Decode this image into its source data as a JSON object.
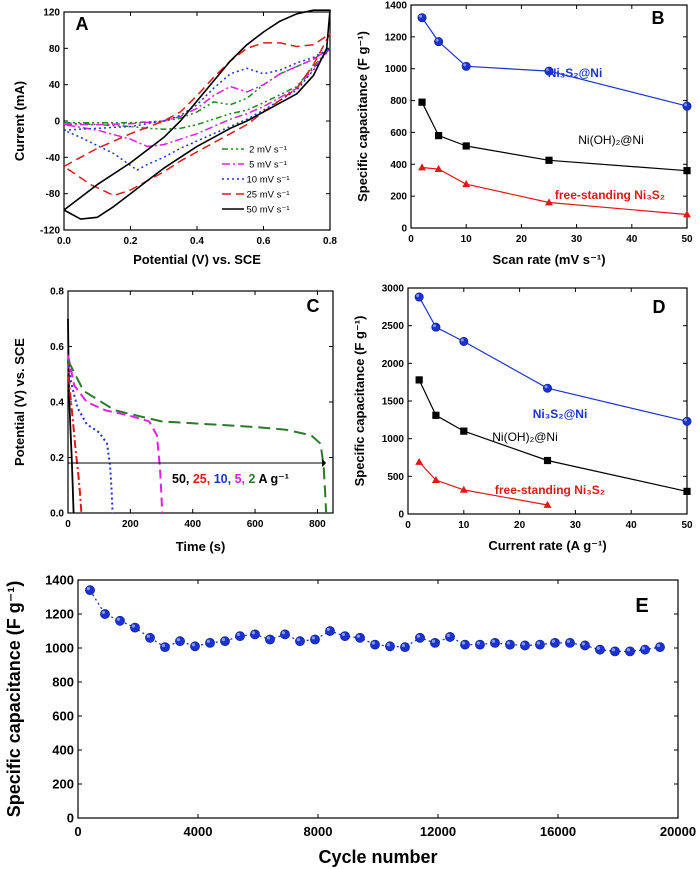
{
  "panels": {
    "A": {
      "letter": "A",
      "xlabel": "Potential (V) vs. SCE",
      "ylabel": "Current (mA)",
      "xlim": [
        0.0,
        0.8
      ],
      "ylim": [
        -120,
        120
      ],
      "xticks": [
        "0.0",
        "0.2",
        "0.4",
        "0.6",
        "0.8"
      ],
      "yticks": [
        "-120",
        "-80",
        "-40",
        "0",
        "40",
        "80",
        "120"
      ],
      "legend": [
        "2 mV s⁻¹",
        "5 mV s⁻¹",
        "10 mV s⁻¹",
        "25 mV s⁻¹",
        "50 mV s⁻¹"
      ]
    },
    "B": {
      "letter": "B",
      "xlabel": "Scan rate (mV s⁻¹)",
      "ylabel": "Specific capacitance (F g⁻¹)",
      "xticks": [
        "0",
        "10",
        "20",
        "30",
        "40",
        "50"
      ],
      "yticks": [
        "0",
        "200",
        "400",
        "600",
        "800",
        "1000",
        "1200",
        "1400"
      ],
      "labels": [
        "Ni₃S₂@Ni",
        "Ni(OH)₂@Ni",
        "free-standing Ni₃S₂"
      ]
    },
    "C": {
      "letter": "C",
      "xlabel": "Time (s)",
      "ylabel": "Potential (V) vs. SCE",
      "xticks": [
        "0",
        "200",
        "400",
        "600",
        "800"
      ],
      "yticks": [
        "0.0",
        "0.2",
        "0.4",
        "0.6",
        "0.8"
      ],
      "rates_label": [
        "50",
        "25",
        "10",
        "5",
        "2"
      ],
      "rates_unit": "A g⁻¹"
    },
    "D": {
      "letter": "D",
      "xlabel": "Current rate (A g⁻¹)",
      "ylabel": "Specific capacitance (F g⁻¹)",
      "xticks": [
        "0",
        "10",
        "20",
        "30",
        "40",
        "50"
      ],
      "yticks": [
        "0",
        "500",
        "1000",
        "1500",
        "2000",
        "2500",
        "3000"
      ],
      "labels": [
        "Ni₃S₂@Ni",
        "Ni(OH)₂@Ni",
        "free-standing Ni₃S₂"
      ]
    },
    "E": {
      "letter": "E",
      "xlabel": "Cycle number",
      "ylabel": "Specific capacitance (F g⁻¹)",
      "xticks": [
        "0",
        "4000",
        "8000",
        "12000",
        "16000",
        "20000"
      ],
      "yticks": [
        "0",
        "200",
        "400",
        "600",
        "800",
        "1000",
        "1200",
        "1400"
      ]
    }
  },
  "colors": {
    "black": "#000000",
    "blue": "#1a33d0",
    "red": "#e01818",
    "green": "#1a8a1a",
    "magenta": "#e020e0",
    "darkgreen": "#2a7a2a"
  },
  "chart_data": [
    {
      "panel": "A",
      "type": "line",
      "xlim": [
        0.0,
        0.8
      ],
      "ylim": [
        -120,
        120
      ],
      "series": [
        {
          "name": "2 mV s⁻¹",
          "color": "#1a8a1a",
          "dash": "dashdotdot",
          "x": [
            0.0,
            0.1,
            0.2,
            0.3,
            0.35,
            0.4,
            0.45,
            0.5,
            0.55,
            0.6,
            0.65,
            0.7,
            0.75,
            0.8,
            0.75,
            0.7,
            0.6,
            0.55,
            0.5,
            0.45,
            0.4,
            0.35,
            0.3,
            0.25,
            0.2,
            0.1,
            0.0
          ],
          "y": [
            -2,
            -2,
            -2,
            0,
            3,
            10,
            21,
            18,
            25,
            40,
            52,
            60,
            68,
            80,
            60,
            38,
            20,
            12,
            8,
            2,
            -4,
            -8,
            -9,
            -8,
            -6,
            -4,
            -2
          ]
        },
        {
          "name": "5 mV s⁻¹",
          "color": "#e020e0",
          "dash": "dashdot",
          "x": [
            0.0,
            0.1,
            0.2,
            0.3,
            0.35,
            0.4,
            0.45,
            0.5,
            0.55,
            0.6,
            0.65,
            0.7,
            0.75,
            0.8,
            0.75,
            0.7,
            0.6,
            0.55,
            0.5,
            0.45,
            0.4,
            0.35,
            0.3,
            0.25,
            0.2,
            0.1,
            0.0
          ],
          "y": [
            -4,
            -4,
            -3,
            0,
            5,
            14,
            28,
            38,
            32,
            40,
            52,
            60,
            68,
            80,
            58,
            36,
            16,
            8,
            2,
            -6,
            -14,
            -20,
            -26,
            -28,
            -20,
            -10,
            -4
          ]
        },
        {
          "name": "10 mV s⁻¹",
          "color": "#1a33d0",
          "dash": "dot",
          "x": [
            0.0,
            0.1,
            0.2,
            0.3,
            0.35,
            0.4,
            0.45,
            0.5,
            0.55,
            0.6,
            0.65,
            0.7,
            0.75,
            0.8,
            0.75,
            0.7,
            0.6,
            0.55,
            0.5,
            0.45,
            0.4,
            0.35,
            0.3,
            0.25,
            0.22,
            0.15,
            0.05,
            0.0
          ],
          "y": [
            -10,
            -8,
            -6,
            0,
            6,
            18,
            36,
            52,
            58,
            52,
            56,
            64,
            70,
            80,
            56,
            34,
            12,
            2,
            -6,
            -14,
            -22,
            -30,
            -40,
            -48,
            -54,
            -36,
            -18,
            -10
          ]
        },
        {
          "name": "25 mV s⁻¹",
          "color": "#e01818",
          "dash": "dash",
          "x": [
            0.0,
            0.1,
            0.2,
            0.3,
            0.35,
            0.4,
            0.45,
            0.5,
            0.55,
            0.6,
            0.65,
            0.7,
            0.75,
            0.8,
            0.75,
            0.7,
            0.6,
            0.55,
            0.5,
            0.45,
            0.4,
            0.35,
            0.3,
            0.25,
            0.2,
            0.15,
            0.08,
            0.0
          ],
          "y": [
            -50,
            -30,
            -14,
            0,
            10,
            28,
            48,
            66,
            80,
            86,
            86,
            82,
            84,
            96,
            62,
            36,
            10,
            -4,
            -14,
            -24,
            -34,
            -44,
            -56,
            -66,
            -76,
            -82,
            -70,
            -50
          ]
        },
        {
          "name": "50 mV s⁻¹",
          "color": "#000000",
          "dash": "solid",
          "x": [
            0.0,
            0.1,
            0.2,
            0.3,
            0.35,
            0.4,
            0.45,
            0.5,
            0.55,
            0.6,
            0.65,
            0.7,
            0.75,
            0.8,
            0.79,
            0.75,
            0.7,
            0.6,
            0.55,
            0.5,
            0.45,
            0.4,
            0.35,
            0.3,
            0.25,
            0.2,
            0.15,
            0.1,
            0.05,
            0.0
          ],
          "y": [
            -98,
            -70,
            -46,
            -18,
            0,
            22,
            44,
            66,
            84,
            98,
            110,
            118,
            122,
            122,
            80,
            50,
            30,
            10,
            0,
            -8,
            -18,
            -28,
            -40,
            -52,
            -66,
            -80,
            -94,
            -106,
            -108,
            -98
          ]
        }
      ]
    },
    {
      "panel": "B",
      "type": "line",
      "xlim": [
        0,
        50
      ],
      "ylim": [
        0,
        1400
      ],
      "series": [
        {
          "name": "Ni₃S₂@Ni",
          "color": "#1a33d0",
          "marker": "circle",
          "x": [
            2,
            5,
            10,
            25,
            50
          ],
          "y": [
            1320,
            1170,
            1015,
            985,
            765
          ]
        },
        {
          "name": "Ni(OH)₂@Ni",
          "color": "#000000",
          "marker": "square",
          "x": [
            2,
            5,
            10,
            25,
            50
          ],
          "y": [
            790,
            580,
            515,
            425,
            360
          ]
        },
        {
          "name": "free-standing Ni₃S₂",
          "color": "#e01818",
          "marker": "triangle",
          "x": [
            2,
            5,
            10,
            25,
            50
          ],
          "y": [
            380,
            370,
            275,
            160,
            85
          ]
        }
      ]
    },
    {
      "panel": "C",
      "type": "line",
      "xlim": [
        0,
        850
      ],
      "ylim": [
        0,
        0.8
      ],
      "series": [
        {
          "name": "50",
          "color": "#000000",
          "dash": "solid",
          "x": [
            0,
            3,
            8,
            12,
            15,
            17,
            18
          ],
          "y": [
            0.7,
            0.44,
            0.3,
            0.2,
            0.1,
            0.03,
            0.0
          ]
        },
        {
          "name": "25",
          "color": "#e01818",
          "dash": "dashdot",
          "x": [
            0,
            5,
            15,
            25,
            33,
            38,
            41,
            43
          ],
          "y": [
            0.55,
            0.45,
            0.34,
            0.22,
            0.14,
            0.08,
            0.03,
            0.0
          ]
        },
        {
          "name": "10",
          "color": "#1a33d0",
          "dash": "dot",
          "x": [
            0,
            10,
            30,
            60,
            100,
            125,
            135,
            140,
            143
          ],
          "y": [
            0.55,
            0.47,
            0.38,
            0.32,
            0.29,
            0.25,
            0.17,
            0.08,
            0.0
          ]
        },
        {
          "name": "5",
          "color": "#e020e0",
          "dash": "dash",
          "x": [
            0,
            20,
            60,
            120,
            200,
            260,
            285,
            295,
            300,
            302
          ],
          "y": [
            0.57,
            0.46,
            0.4,
            0.37,
            0.35,
            0.33,
            0.28,
            0.16,
            0.06,
            0.0
          ]
        },
        {
          "name": "2",
          "color": "#2a7a2a",
          "dash": "longdash",
          "x": [
            0,
            50,
            150,
            300,
            450,
            600,
            700,
            780,
            810,
            820,
            825,
            828
          ],
          "y": [
            0.55,
            0.44,
            0.37,
            0.33,
            0.32,
            0.31,
            0.3,
            0.28,
            0.25,
            0.17,
            0.07,
            0.0
          ]
        }
      ]
    },
    {
      "panel": "D",
      "type": "line",
      "xlim": [
        0,
        50
      ],
      "ylim": [
        0,
        3000
      ],
      "series": [
        {
          "name": "Ni₃S₂@Ni",
          "color": "#1a33d0",
          "marker": "circle",
          "x": [
            2,
            5,
            10,
            25,
            50
          ],
          "y": [
            2880,
            2480,
            2290,
            1670,
            1230
          ]
        },
        {
          "name": "Ni(OH)₂@Ni",
          "color": "#000000",
          "marker": "square",
          "x": [
            2,
            5,
            10,
            25,
            50
          ],
          "y": [
            1780,
            1310,
            1100,
            710,
            300
          ]
        },
        {
          "name": "free-standing Ni₃S₂",
          "color": "#e01818",
          "marker": "triangle",
          "x": [
            2,
            5,
            10,
            25
          ],
          "y": [
            690,
            450,
            320,
            120
          ]
        }
      ]
    },
    {
      "panel": "E",
      "type": "scatter",
      "xlim": [
        0,
        20000
      ],
      "ylim": [
        0,
        1400
      ],
      "series": [
        {
          "name": "",
          "color": "#1a33d0",
          "marker": "circle",
          "x": [
            400,
            900,
            1400,
            1900,
            2400,
            2900,
            3400,
            3900,
            4400,
            4900,
            5400,
            5900,
            6400,
            6900,
            7400,
            7900,
            8400,
            8900,
            9400,
            9900,
            10400,
            10900,
            11400,
            11900,
            12400,
            12900,
            13400,
            13900,
            14400,
            14900,
            15400,
            15900,
            16400,
            16900,
            17400,
            17900,
            18400,
            18900,
            19400
          ],
          "y": [
            1340,
            1200,
            1160,
            1120,
            1060,
            1005,
            1040,
            1010,
            1030,
            1040,
            1070,
            1080,
            1050,
            1080,
            1040,
            1050,
            1100,
            1070,
            1060,
            1020,
            1010,
            1005,
            1060,
            1030,
            1065,
            1020,
            1020,
            1030,
            1020,
            1015,
            1020,
            1030,
            1030,
            1015,
            990,
            980,
            980,
            990,
            1005
          ]
        }
      ]
    }
  ]
}
